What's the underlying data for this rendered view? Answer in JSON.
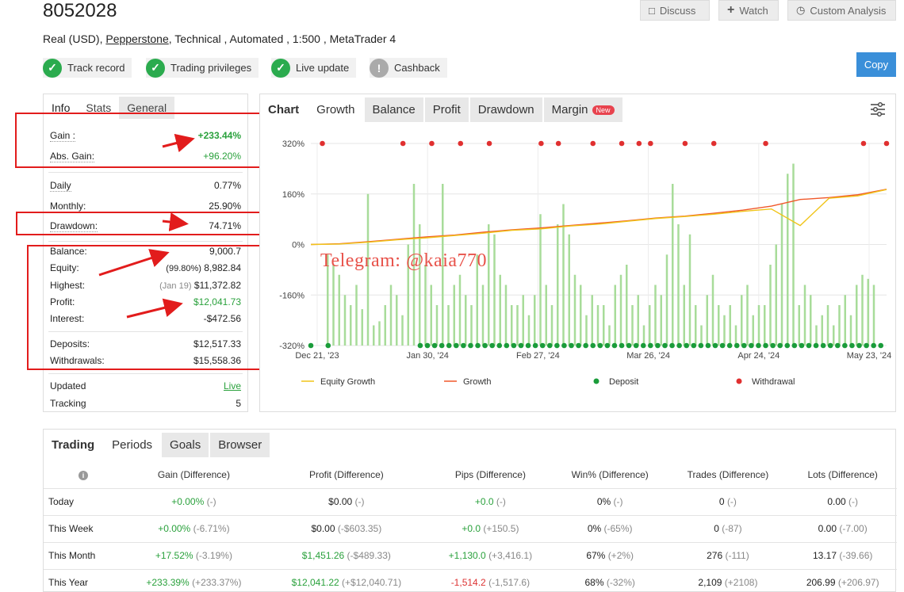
{
  "header": {
    "title": "8052028",
    "subtitle_prefix": "Real (USD),",
    "broker": "Pepperstone",
    "subtitle_suffix": ", Technical , Automated , 1:500 , MetaTrader 4"
  },
  "actions": {
    "discuss": "Discuss",
    "watch": "Watch",
    "custom_analysis": "Custom Analysis",
    "copy": "Copy"
  },
  "badges": [
    {
      "label": "Track record",
      "status": "ok"
    },
    {
      "label": "Trading privileges",
      "status": "ok"
    },
    {
      "label": "Live update",
      "status": "ok"
    },
    {
      "label": "Cashback",
      "status": "info"
    }
  ],
  "info_panel": {
    "tabs": [
      "Info",
      "Stats",
      "General"
    ],
    "gain_label": "Gain :",
    "gain_value": "+233.44%",
    "abs_gain_label": "Abs. Gain:",
    "abs_gain_value": "+96.20%",
    "daily_label": "Daily",
    "daily_value": "0.77%",
    "monthly_label": "Monthly:",
    "monthly_value": "25.90%",
    "drawdown_label": "Drawdown:",
    "drawdown_value": "74.71%",
    "balance_label": "Balance:",
    "balance_value": "9,000.7",
    "equity_label": "Equity:",
    "equity_pct": "(99.80%)",
    "equity_value": "8,982.84",
    "highest_label": "Highest:",
    "highest_date": "(Jan 19)",
    "highest_value": "$11,372.82",
    "profit_label": "Profit:",
    "profit_value": "$12,041.73",
    "interest_label": "Interest:",
    "interest_value": "-$472.56",
    "deposits_label": "Deposits:",
    "deposits_value": "$12,517.33",
    "withdrawals_label": "Withdrawals:",
    "withdrawals_value": "$15,558.36",
    "updated_label": "Updated",
    "updated_value": "Live",
    "tracking_label": "Tracking",
    "tracking_value": "5"
  },
  "chart_tabs": {
    "label": "Chart",
    "tabs": [
      "Growth",
      "Balance",
      "Profit",
      "Drawdown",
      "Margin"
    ],
    "new_badge": "New"
  },
  "watermark": "Telegram: @kaia770",
  "chart_data": {
    "type": "line",
    "yticks": [
      "320%",
      "160%",
      "0%",
      "-160%",
      "-320%"
    ],
    "ylim": [
      -320,
      320
    ],
    "xticks": [
      "Dec 21, '23",
      "Jan 30, '24",
      "Feb 27, '24",
      "Mar 26, '24",
      "Apr 24, '24",
      "May 23, '24"
    ],
    "legend": [
      "Equity Growth",
      "Growth",
      "Deposit",
      "Withdrawal"
    ],
    "colors": {
      "equity": "#f0c419",
      "growth": "#f0582a",
      "deposit": "#1a9c3a",
      "withdrawal": "#e03030",
      "bars": "#a8dc9a"
    },
    "series": [
      {
        "name": "Growth",
        "x": [
          0,
          5,
          10,
          15,
          20,
          25,
          30,
          35,
          40,
          45,
          50,
          55,
          60,
          65,
          70,
          75,
          80,
          85,
          90,
          95,
          100
        ],
        "values": [
          0,
          3,
          12,
          22,
          32,
          40,
          52,
          62,
          70,
          80,
          90,
          100,
          112,
          120,
          132,
          145,
          162,
          190,
          198,
          210,
          233
        ]
      },
      {
        "name": "Equity Growth",
        "x": [
          0,
          5,
          10,
          15,
          20,
          25,
          30,
          35,
          40,
          45,
          50,
          55,
          60,
          65,
          70,
          75,
          80,
          85,
          90,
          95,
          100
        ],
        "values": [
          0,
          2,
          10,
          20,
          28,
          38,
          48,
          60,
          66,
          78,
          86,
          98,
          110,
          118,
          128,
          140,
          150,
          80,
          195,
          205,
          232
        ]
      }
    ]
  },
  "periods": {
    "tabs": [
      "Trading",
      "Periods",
      "Goals",
      "Browser"
    ],
    "columns": [
      "Gain (Difference)",
      "Profit (Difference)",
      "Pips (Difference)",
      "Win% (Difference)",
      "Trades (Difference)",
      "Lots (Difference)"
    ],
    "rows": [
      {
        "label": "Today",
        "gain": "+0.00%",
        "gain_d": "(-)",
        "profit": "$0.00",
        "profit_d": "(-)",
        "pips": "+0.0",
        "pips_d": "(-)",
        "win": "0%",
        "win_d": "(-)",
        "trades": "0",
        "trades_d": "(-)",
        "lots": "0.00",
        "lots_d": "(-)"
      },
      {
        "label": "This Week",
        "gain": "+0.00%",
        "gain_d": "(-6.71%)",
        "profit": "$0.00",
        "profit_d": "(-$603.35)",
        "pips": "+0.0",
        "pips_d": "(+150.5)",
        "win": "0%",
        "win_d": "(-65%)",
        "trades": "0",
        "trades_d": "(-87)",
        "lots": "0.00",
        "lots_d": "(-7.00)"
      },
      {
        "label": "This Month",
        "gain": "+17.52%",
        "gain_d": "(-3.19%)",
        "profit": "$1,451.26",
        "profit_d": "(-$489.33)",
        "pips": "+1,130.0",
        "pips_d": "(+3,416.1)",
        "win": "67%",
        "win_d": "(+2%)",
        "trades": "276",
        "trades_d": "(-111)",
        "lots": "13.17",
        "lots_d": "(-39.66)"
      },
      {
        "label": "This Year",
        "gain": "+233.39%",
        "gain_d": "(+233.37%)",
        "profit": "$12,041.22",
        "profit_d": "(+$12,040.71)",
        "pips": "-1,514.2",
        "pips_d": "(-1,517.6)",
        "win": "68%",
        "win_d": "(-32%)",
        "trades": "2,109",
        "trades_d": "(+2108)",
        "lots": "206.99",
        "lots_d": "(+206.97)"
      }
    ]
  }
}
